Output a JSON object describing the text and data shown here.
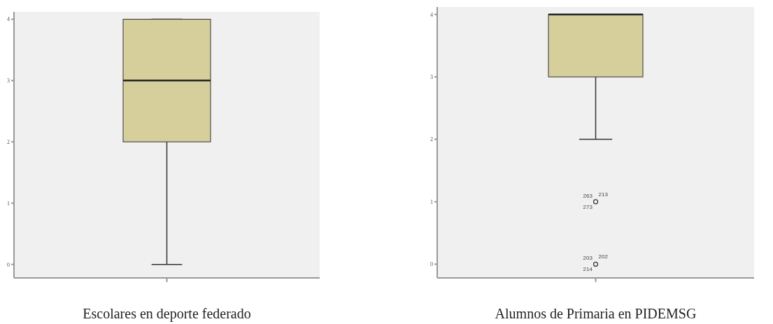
{
  "chart_data": [
    {
      "type": "box",
      "categories": [
        null
      ],
      "xlabel": "Escolares en deporte federado",
      "color": "#d6cf9c",
      "ylim": [
        -0.22,
        4.12
      ],
      "yticks": [
        0,
        1,
        2,
        3,
        4
      ],
      "grid": false,
      "boxes": [
        {
          "low": 0,
          "q1": 2,
          "median": 3,
          "q3": 4,
          "high": 4
        }
      ]
    },
    {
      "type": "box",
      "categories": [
        null
      ],
      "xlabel": "Alumnos de Primaria en PIDEMSG",
      "color": "#d6cf9c",
      "ylim": [
        -0.22,
        4.12
      ],
      "yticks": [
        0,
        1,
        2,
        3,
        4
      ],
      "grid": false,
      "boxes": [
        {
          "low": 2,
          "q1": 3,
          "median": 4,
          "q3": 4,
          "high": 4,
          "outliers": [
            1,
            0
          ]
        }
      ],
      "annotations": [
        "263",
        "213",
        "273",
        "203",
        "202",
        "214"
      ]
    }
  ]
}
